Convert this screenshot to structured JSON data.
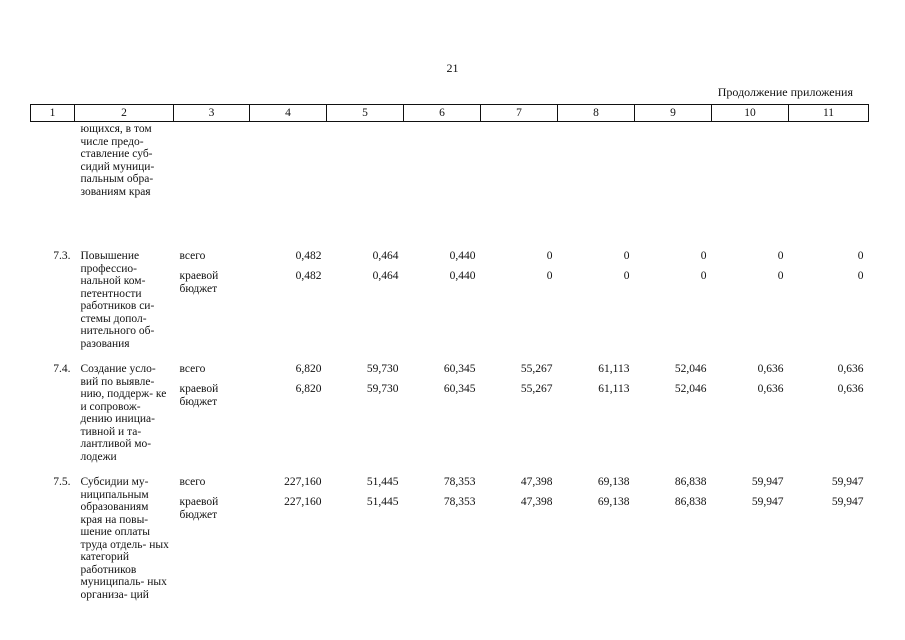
{
  "page_number": "21",
  "continuation_label": "Продолжение приложения",
  "columns": [
    "1",
    "2",
    "3",
    "4",
    "5",
    "6",
    "7",
    "8",
    "9",
    "10",
    "11"
  ],
  "continued_row": {
    "name": "ющихся, в том числе предо- ставление суб- сидий муници- пальным обра- зованиям края"
  },
  "rows": [
    {
      "code": "7.3.",
      "name": "Повышение профессио- нальной ком- петентности работников си- стемы допол- нительного об- разования",
      "type_total": "всего",
      "type_regional": "краевой бюджет",
      "total": [
        "0,482",
        "0,464",
        "0,440",
        "0",
        "0",
        "0",
        "0",
        "0"
      ],
      "regional": [
        "0,482",
        "0,464",
        "0,440",
        "0",
        "0",
        "0",
        "0",
        "0"
      ]
    },
    {
      "code": "7.4.",
      "name": "Создание усло- вий по выявле- нию, поддерж- ке и сопровож- дению инициа- тивной и та- лантливой мо- лодежи",
      "type_total": "всего",
      "type_regional": "краевой бюджет",
      "total": [
        "6,820",
        "59,730",
        "60,345",
        "55,267",
        "61,113",
        "52,046",
        "0,636",
        "0,636"
      ],
      "regional": [
        "6,820",
        "59,730",
        "60,345",
        "55,267",
        "61,113",
        "52,046",
        "0,636",
        "0,636"
      ]
    },
    {
      "code": "7.5.",
      "name": "Субсидии му- ниципальным образованиям края на повы- шение оплаты труда отдель- ных категорий работников муниципаль- ных организа- ций",
      "type_total": "всего",
      "type_regional": "краевой бюджет",
      "total": [
        "227,160",
        "51,445",
        "78,353",
        "47,398",
        "69,138",
        "86,838",
        "59,947",
        "59,947"
      ],
      "regional": [
        "227,160",
        "51,445",
        "78,353",
        "47,398",
        "69,138",
        "86,838",
        "59,947",
        "59,947"
      ]
    }
  ]
}
